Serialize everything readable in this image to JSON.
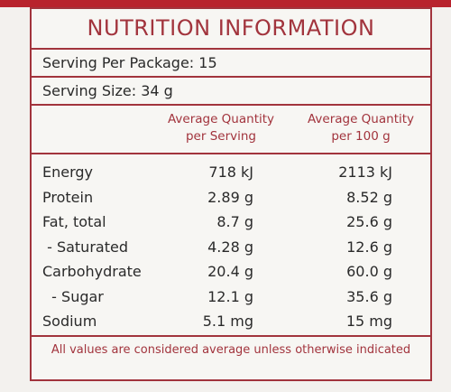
{
  "title": "NUTRITION INFORMATION",
  "serving_per_package": "Serving Per Package: 15",
  "serving_size": "Serving Size: 34 g",
  "columns": {
    "per_serving": [
      "Average Quantity",
      "per Serving"
    ],
    "per_100g": [
      "Average Quantity",
      "per 100 g"
    ]
  },
  "rows": [
    {
      "name": "Energy",
      "per_serving": "718 kJ",
      "per_100g": "2113 kJ"
    },
    {
      "name": "Protein",
      "per_serving": "2.89 g",
      "per_100g": "8.52 g"
    },
    {
      "name": "Fat, total",
      "per_serving": "8.7 g",
      "per_100g": "25.6 g"
    },
    {
      "name": " - Saturated",
      "per_serving": "4.28 g",
      "per_100g": "12.6 g"
    },
    {
      "name": "Carbohydrate",
      "per_serving": "20.4 g",
      "per_100g": "60.0 g"
    },
    {
      "name": "  - Sugar",
      "per_serving": "12.1 g",
      "per_100g": "35.6 g"
    },
    {
      "name": "Sodium",
      "per_serving": "5.1 mg",
      "per_100g": "15 mg"
    }
  ],
  "footer": "All values are considered average unless otherwise indicated",
  "colors": {
    "accent": "#a2343d",
    "band": "#b8232d"
  }
}
